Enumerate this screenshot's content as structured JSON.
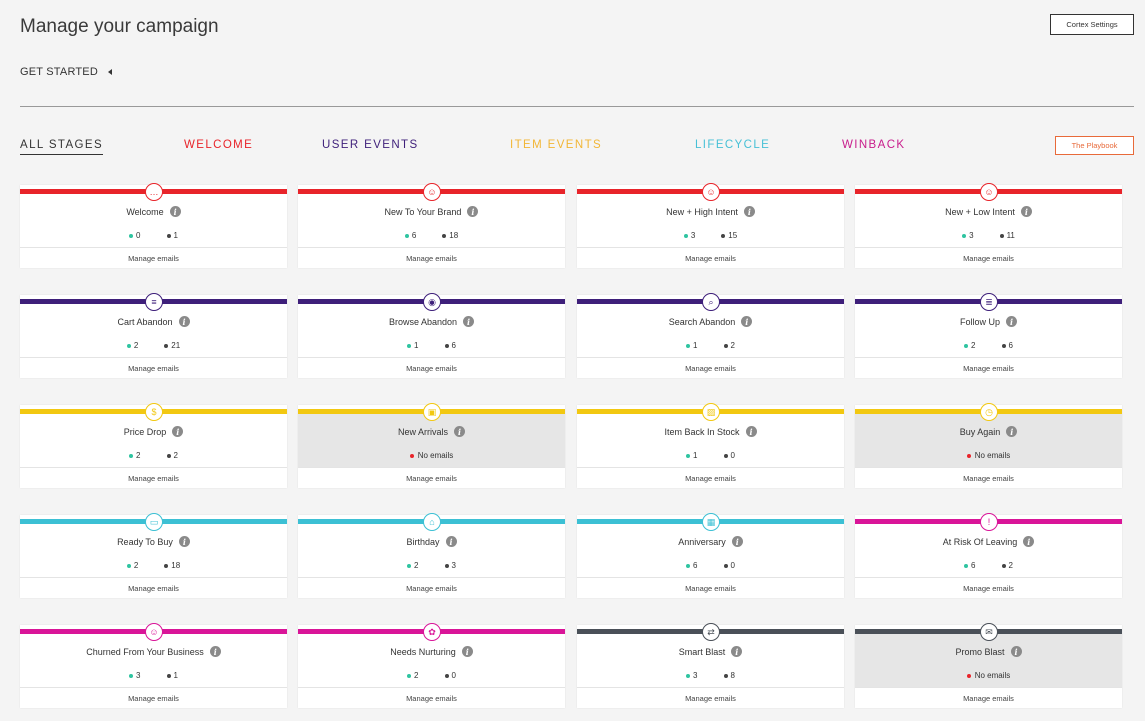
{
  "page": {
    "title": "Manage your campaign"
  },
  "header": {
    "cortex_settings_label": "Cortex Settings"
  },
  "get_started": {
    "label": "GET STARTED"
  },
  "tabs": [
    {
      "label": "ALL STAGES",
      "color": "#333333",
      "active": true
    },
    {
      "label": "WELCOME",
      "color": "#e8242a"
    },
    {
      "label": "USER EVENTS",
      "color": "#3e1f7a"
    },
    {
      "label": "ITEM EVENTS",
      "color": "#f2b636"
    },
    {
      "label": "LIFECYCLE",
      "color": "#47c0d6"
    },
    {
      "label": "WINBACK",
      "color": "#c81d8c"
    }
  ],
  "playbook_label": "The Playbook",
  "manage_label": "Manage emails",
  "no_emails_label": "No emails",
  "colors": {
    "welcome": "#e8242a",
    "user_events": "#3e1f7a",
    "item_events": "#f2c811",
    "lifecycle": "#3cc0d4",
    "winback": "#d91598",
    "other": "#4a5058",
    "green": "#2ec4a0"
  },
  "campaigns": [
    {
      "title": "Welcome",
      "stage": "welcome",
      "icon": "chat-bubble-icon",
      "glyph": "…",
      "active": "0",
      "total": "1"
    },
    {
      "title": "New To Your Brand",
      "stage": "welcome",
      "icon": "user-plus-icon",
      "glyph": "☺",
      "active": "6",
      "total": "18"
    },
    {
      "title": "New + High Intent",
      "stage": "welcome",
      "icon": "user-plus-icon",
      "glyph": "☺",
      "active": "3",
      "total": "15"
    },
    {
      "title": "New + Low Intent",
      "stage": "welcome",
      "icon": "user-plus-icon",
      "glyph": "☺",
      "active": "3",
      "total": "11"
    },
    {
      "title": "Cart Abandon",
      "stage": "user_events",
      "icon": "cart-icon",
      "glyph": "≡",
      "active": "2",
      "total": "21"
    },
    {
      "title": "Browse Abandon",
      "stage": "user_events",
      "icon": "eye-icon",
      "glyph": "◉",
      "active": "1",
      "total": "6"
    },
    {
      "title": "Search Abandon",
      "stage": "user_events",
      "icon": "search-icon",
      "glyph": "⌕",
      "active": "1",
      "total": "2"
    },
    {
      "title": "Follow Up",
      "stage": "user_events",
      "icon": "document-icon",
      "glyph": "≣",
      "active": "2",
      "total": "6"
    },
    {
      "title": "Price Drop",
      "stage": "item_events",
      "icon": "price-tag-icon",
      "glyph": "$",
      "active": "2",
      "total": "2"
    },
    {
      "title": "New Arrivals",
      "stage": "item_events",
      "icon": "box-icon",
      "glyph": "▣",
      "empty": true
    },
    {
      "title": "Item Back In Stock",
      "stage": "item_events",
      "icon": "package-icon",
      "glyph": "▨",
      "active": "1",
      "total": "0"
    },
    {
      "title": "Buy Again",
      "stage": "item_events",
      "icon": "alarm-clock-icon",
      "glyph": "◷",
      "empty": true
    },
    {
      "title": "Ready To Buy",
      "stage": "lifecycle",
      "icon": "ticket-icon",
      "glyph": "▭",
      "active": "2",
      "total": "18"
    },
    {
      "title": "Birthday",
      "stage": "lifecycle",
      "icon": "cake-icon",
      "glyph": "⌂",
      "active": "2",
      "total": "3"
    },
    {
      "title": "Anniversary",
      "stage": "lifecycle",
      "icon": "calendar-icon",
      "glyph": "▦",
      "active": "6",
      "total": "0"
    },
    {
      "title": "At Risk Of Leaving",
      "stage": "winback",
      "icon": "alert-icon",
      "glyph": "!",
      "active": "6",
      "total": "2"
    },
    {
      "title": "Churned From Your Business",
      "stage": "winback",
      "icon": "user-minus-icon",
      "glyph": "☺",
      "active": "3",
      "total": "1"
    },
    {
      "title": "Needs Nurturing",
      "stage": "winback",
      "icon": "flower-icon",
      "glyph": "✿",
      "active": "2",
      "total": "0"
    },
    {
      "title": "Smart Blast",
      "stage": "other",
      "icon": "shuffle-icon",
      "glyph": "⇄",
      "active": "3",
      "total": "8"
    },
    {
      "title": "Promo Blast",
      "stage": "other",
      "icon": "envelope-icon",
      "glyph": "✉",
      "empty": true
    }
  ]
}
